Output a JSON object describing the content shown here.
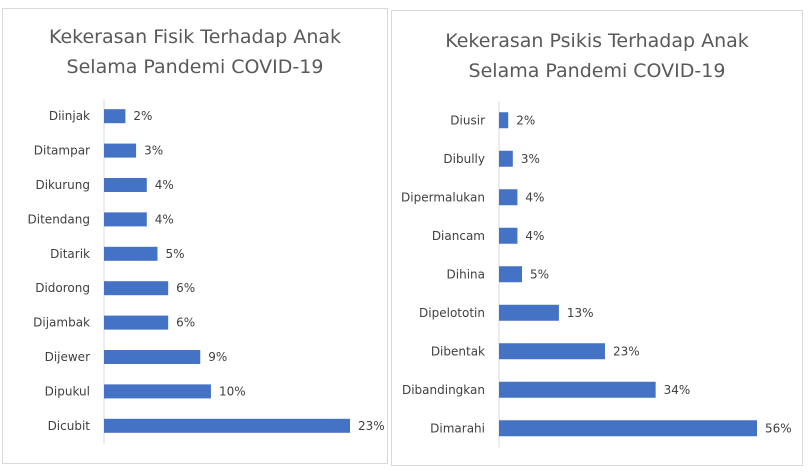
{
  "chart_data": [
    {
      "type": "bar",
      "orientation": "horizontal",
      "title": [
        "Kekerasan Fisik Terhadap Anak",
        "Selama Pandemi COVID-19"
      ],
      "categories": [
        "Diinjak",
        "Ditampar",
        "Dikurung",
        "Ditendang",
        "Ditarik",
        "Didorong",
        "Dijambak",
        "Dijewer",
        "Dipukul",
        "Dicubit"
      ],
      "values": [
        2,
        3,
        4,
        4,
        5,
        6,
        6,
        9,
        10,
        23
      ],
      "value_labels": [
        "2%",
        "3%",
        "4%",
        "4%",
        "5%",
        "6%",
        "6%",
        "9%",
        "10%",
        "23%"
      ],
      "color": "#4472c4",
      "grid": false,
      "legend": "none"
    },
    {
      "type": "bar",
      "orientation": "horizontal",
      "title": [
        "Kekerasan Psikis Terhadap Anak",
        "Selama Pandemi COVID-19"
      ],
      "categories": [
        "Diusir",
        "Dibully",
        "Dipermalukan",
        "Diancam",
        "Dihina",
        "Dipelototin",
        "Dibentak",
        "Dibandingkan",
        "Dimarahi"
      ],
      "values": [
        2,
        3,
        4,
        4,
        5,
        13,
        23,
        34,
        56
      ],
      "value_labels": [
        "2%",
        "3%",
        "4%",
        "4%",
        "5%",
        "13%",
        "23%",
        "34%",
        "56%"
      ],
      "color": "#4472c4",
      "grid": false,
      "legend": "none"
    }
  ]
}
